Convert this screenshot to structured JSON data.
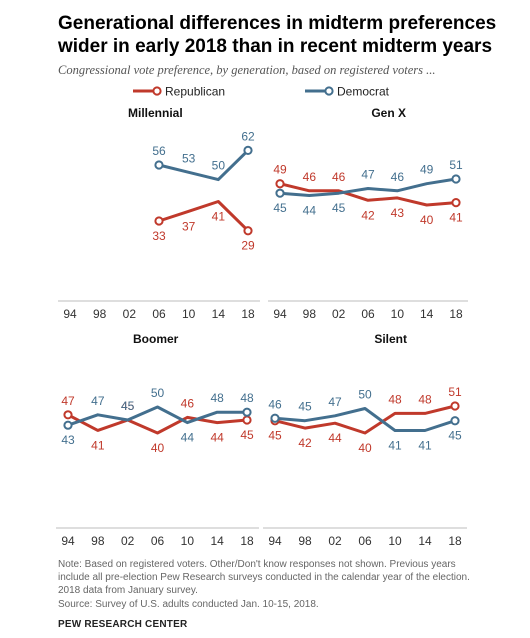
{
  "title": "Generational differences in midterm preferences wider in early 2018 than in recent midterm years",
  "subtitle": "Congressional vote preference, by generation, based on registered voters ...",
  "notes": [
    "Note: Based on registered voters. Other/Don't know responses not shown. Previous years",
    "include all pre-election Pew Research surveys conducted in the calendar year of the election.",
    "2018 data from January survey.",
    "Source: Survey of U.S. adults conducted Jan. 10-15, 2018."
  ],
  "brand": "PEW RESEARCH CENTER",
  "colors": {
    "republican": "#c0392b",
    "democrat": "#436f8e"
  },
  "chart_data": {
    "type": "line",
    "legend": [
      "Republican",
      "Democrat"
    ],
    "legend_position": "top",
    "x": [
      "94",
      "98",
      "02",
      "06",
      "10",
      "14",
      "18"
    ],
    "ylim": [
      20,
      70
    ],
    "panels": [
      {
        "name": "Millennial",
        "series": [
          {
            "name": "Republican",
            "values": [
              null,
              null,
              null,
              33,
              37,
              41,
              29
            ]
          },
          {
            "name": "Democrat",
            "values": [
              null,
              null,
              null,
              56,
              53,
              50,
              62
            ]
          }
        ]
      },
      {
        "name": "Gen X",
        "series": [
          {
            "name": "Republican",
            "values": [
              49,
              46,
              46,
              42,
              43,
              40,
              41
            ]
          },
          {
            "name": "Democrat",
            "values": [
              45,
              44,
              45,
              47,
              46,
              49,
              51
            ]
          }
        ]
      },
      {
        "name": "Boomer",
        "series": [
          {
            "name": "Republican",
            "values": [
              47,
              41,
              45,
              40,
              46,
              44,
              45
            ]
          },
          {
            "name": "Democrat",
            "values": [
              43,
              47,
              45,
              50,
              44,
              48,
              48
            ]
          }
        ]
      },
      {
        "name": "Silent",
        "series": [
          {
            "name": "Republican",
            "values": [
              45,
              42,
              44,
              40,
              48,
              48,
              51
            ]
          },
          {
            "name": "Democrat",
            "values": [
              46,
              45,
              47,
              50,
              41,
              41,
              45
            ]
          }
        ]
      }
    ]
  }
}
